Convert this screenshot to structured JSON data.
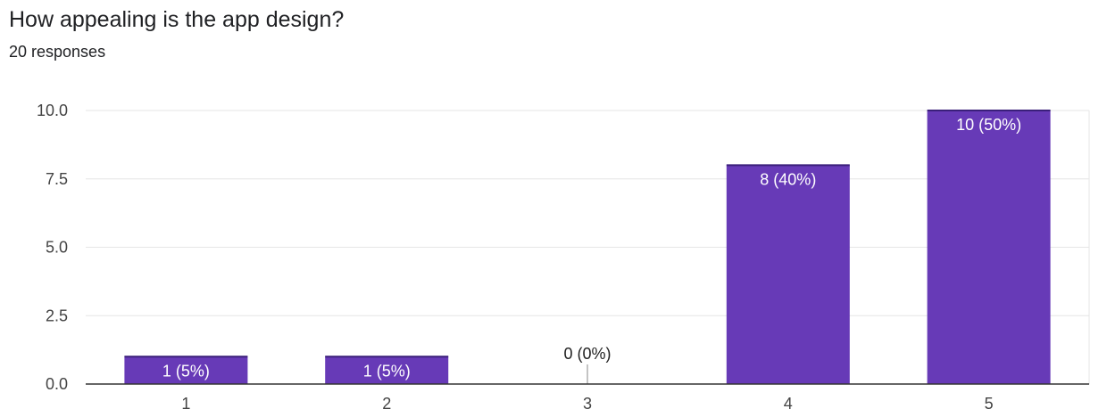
{
  "header": {
    "title": "How appealing is the app design?",
    "responses": "20 responses"
  },
  "colors": {
    "bar": "#673ab7",
    "grid": "#e6e6e6",
    "axis": "#333333",
    "label_inside": "#ffffff",
    "label_outside": "#222222"
  },
  "chart_data": {
    "type": "bar",
    "categories": [
      "1",
      "2",
      "3",
      "4",
      "5"
    ],
    "values": [
      1,
      1,
      0,
      8,
      10
    ],
    "data_labels": [
      "1 (5%)",
      "1 (5%)",
      "0 (0%)",
      "8 (40%)",
      "10 (50%)"
    ],
    "ylim": [
      0,
      10
    ],
    "yticks": [
      "0.0",
      "2.5",
      "5.0",
      "7.5",
      "10.0"
    ],
    "grid": true,
    "legend": "none"
  }
}
